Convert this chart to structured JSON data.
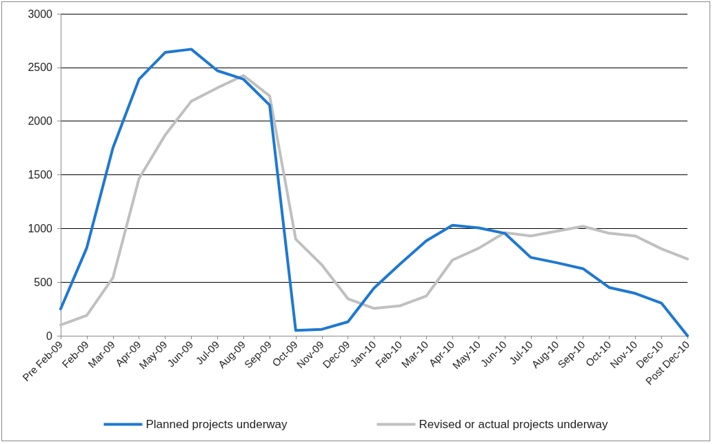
{
  "chart_data": {
    "type": "line",
    "categories": [
      "Pre Feb-09",
      "Feb-09",
      "Mar-09",
      "Apr-09",
      "May-09",
      "Jun-09",
      "Jul-09",
      "Aug-09",
      "Sep-09",
      "Oct-09",
      "Nov-09",
      "Dec-09",
      "Jan-10",
      "Feb-10",
      "Mar-10",
      "Apr-10",
      "May-10",
      "Jun-10",
      "Jul-10",
      "Aug-10",
      "Sep-10",
      "Oct-10",
      "Nov-10",
      "Dec-10",
      "Post Dec-10"
    ],
    "series": [
      {
        "name": "Planned projects underway",
        "color": "#1f78d1",
        "values": [
          250,
          820,
          1750,
          2390,
          2640,
          2670,
          2470,
          2390,
          2150,
          50,
          60,
          130,
          445,
          670,
          885,
          1030,
          1005,
          955,
          730,
          680,
          625,
          450,
          395,
          305,
          0
        ]
      },
      {
        "name": "Revised or actual projects underway",
        "color": "#c0c0c0",
        "values": [
          100,
          190,
          540,
          1465,
          1870,
          2185,
          2310,
          2425,
          2235,
          900,
          660,
          345,
          255,
          280,
          370,
          705,
          815,
          960,
          930,
          975,
          1020,
          955,
          930,
          810,
          715
        ]
      }
    ],
    "ylim": [
      0,
      3000
    ],
    "yticks": [
      0,
      500,
      1000,
      1500,
      2000,
      2500,
      3000
    ],
    "grid": "y",
    "legend": "bottom",
    "marker": "none",
    "line_style": "solid"
  }
}
